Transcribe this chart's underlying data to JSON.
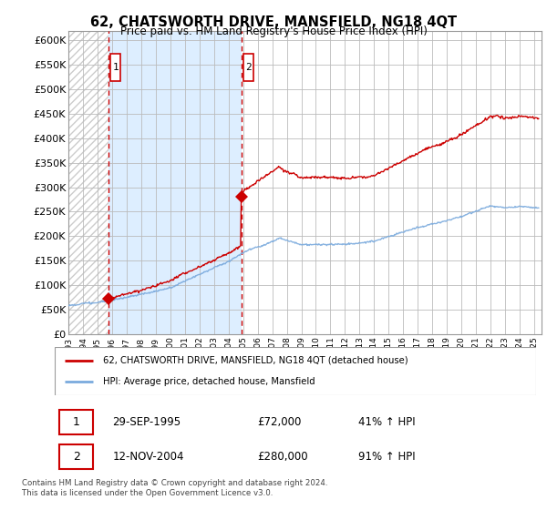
{
  "title": "62, CHATSWORTH DRIVE, MANSFIELD, NG18 4QT",
  "subtitle": "Price paid vs. HM Land Registry's House Price Index (HPI)",
  "ylabel_ticks": [
    "£0",
    "£50K",
    "£100K",
    "£150K",
    "£200K",
    "£250K",
    "£300K",
    "£350K",
    "£400K",
    "£450K",
    "£500K",
    "£550K",
    "£600K"
  ],
  "ytick_values": [
    0,
    50000,
    100000,
    150000,
    200000,
    250000,
    300000,
    350000,
    400000,
    450000,
    500000,
    550000,
    600000
  ],
  "ylim": [
    0,
    620000
  ],
  "xlim_start": 1993.0,
  "xlim_end": 2025.5,
  "xtick_years": [
    1993,
    1994,
    1995,
    1996,
    1997,
    1998,
    1999,
    2000,
    2001,
    2002,
    2003,
    2004,
    2005,
    2006,
    2007,
    2008,
    2009,
    2010,
    2011,
    2012,
    2013,
    2014,
    2015,
    2016,
    2017,
    2018,
    2019,
    2020,
    2021,
    2022,
    2023,
    2024,
    2025
  ],
  "sale1_x": 1995.75,
  "sale1_y": 72000,
  "sale1_label": "1",
  "sale1_date": "29-SEP-1995",
  "sale1_price": "£72,000",
  "sale1_hpi": "41% ↑ HPI",
  "sale2_x": 2004.87,
  "sale2_y": 280000,
  "sale2_label": "2",
  "sale2_date": "12-NOV-2004",
  "sale2_price": "£280,000",
  "sale2_hpi": "91% ↑ HPI",
  "hpi_line_color": "#7aaadd",
  "price_line_color": "#cc0000",
  "vline_color": "#cc0000",
  "background_color": "#ffffff",
  "grid_color": "#bbbbbb",
  "hatch_color": "#cccccc",
  "fill_between_color": "#ddeeff",
  "legend1_label": "62, CHATSWORTH DRIVE, MANSFIELD, NG18 4QT (detached house)",
  "legend2_label": "HPI: Average price, detached house, Mansfield",
  "footer": "Contains HM Land Registry data © Crown copyright and database right 2024.\nThis data is licensed under the Open Government Licence v3.0."
}
